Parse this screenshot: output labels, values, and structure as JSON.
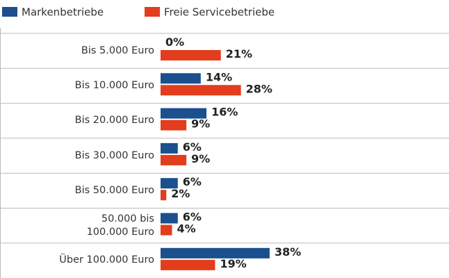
{
  "chart_data": {
    "type": "bar",
    "orientation": "horizontal",
    "categories": [
      "Bis 5.000 Euro",
      "Bis 10.000 Euro",
      "Bis 20.000 Euro",
      "Bis 30.000 Euro",
      "Bis 50.000 Euro",
      "50.000 bis\n100.000 Euro",
      "Über 100.000 Euro"
    ],
    "series": [
      {
        "name": "Markenbetriebe",
        "color": "#1b4f8e",
        "values": [
          0,
          14,
          16,
          6,
          6,
          6,
          38
        ],
        "value_labels": [
          "0%",
          "14%",
          "16%",
          "6%",
          "6%",
          "6%",
          "38%"
        ]
      },
      {
        "name": "Freie Servicebetriebe",
        "color": "#e23d1c",
        "values": [
          21,
          28,
          9,
          9,
          2,
          4,
          19
        ],
        "value_labels": [
          "21%",
          "28%",
          "9%",
          "9%",
          "2%",
          "4%",
          "19%"
        ]
      }
    ],
    "legend": "top-left"
  }
}
